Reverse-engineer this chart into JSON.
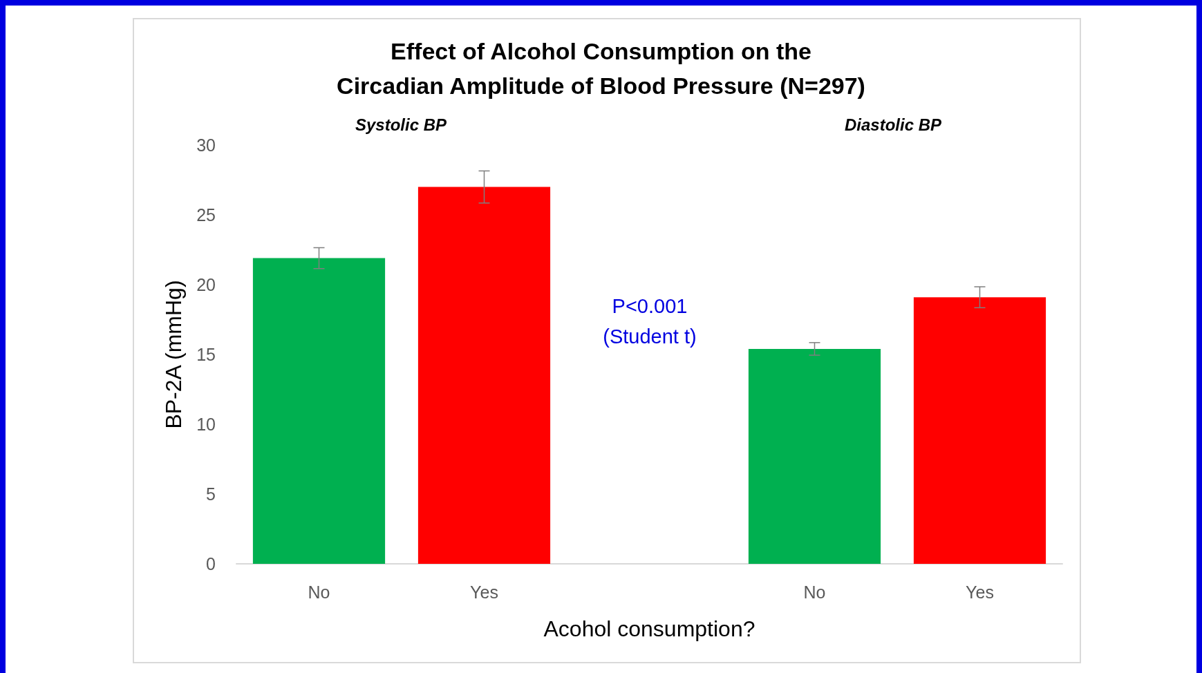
{
  "chart_data": {
    "type": "bar",
    "title": "Effect of Alcohol Consumption on the\nCircadian Amplitude of Blood Pressure (N=297)",
    "xlabel": "Acohol consumption?",
    "ylabel": "BP-2A (mmHg)",
    "categories": [
      "No",
      "Yes",
      null,
      "No",
      "Yes"
    ],
    "values": [
      21.9,
      27.0,
      null,
      15.4,
      19.1
    ],
    "errors": [
      0.75,
      1.15,
      null,
      0.45,
      0.75
    ],
    "colors": [
      "#00b050",
      "#ff0000",
      "#ffffff",
      "#00b050",
      "#ff0000"
    ],
    "ylim": [
      0,
      30
    ],
    "yticks": [
      0,
      5,
      10,
      15,
      20,
      25,
      30
    ],
    "grid": false,
    "annotations": [
      "Systolic BP",
      "Diastolic BP",
      "P<0.001\n(Student t)"
    ]
  }
}
